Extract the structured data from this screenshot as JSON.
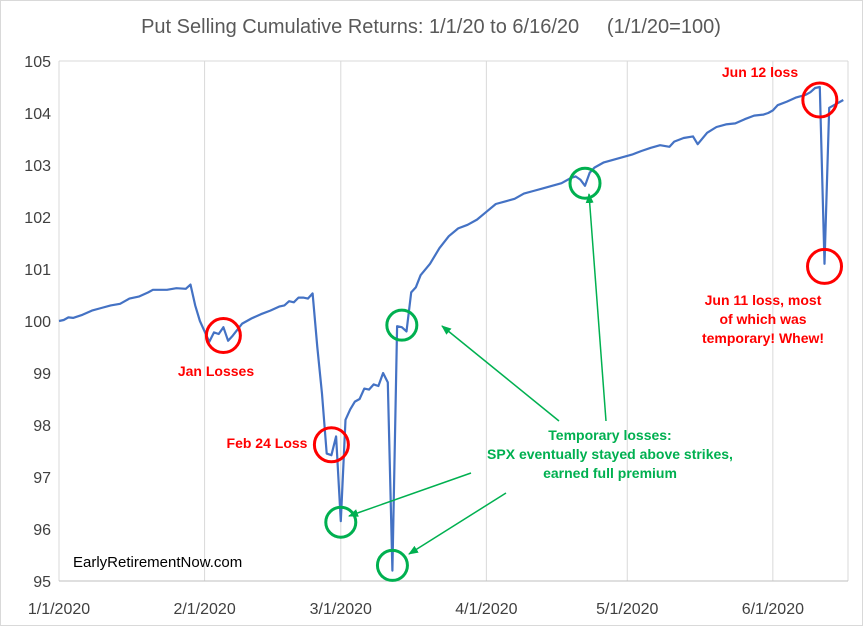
{
  "chart_data": {
    "type": "line",
    "title": "Put Selling Cumulative Returns: 1/1/20 to 6/16/20     (1/1/20=100)",
    "xlabel": "",
    "ylabel": "",
    "xlim": [
      "2020-01-01",
      "2020-06-17"
    ],
    "ylim": [
      95,
      105
    ],
    "y_ticks": [
      95,
      96,
      97,
      98,
      99,
      100,
      101,
      102,
      103,
      104,
      105
    ],
    "x_ticks": [
      {
        "date": "2020-01-01",
        "label": "1/1/2020"
      },
      {
        "date": "2020-02-01",
        "label": "2/1/2020"
      },
      {
        "date": "2020-03-01",
        "label": "3/1/2020"
      },
      {
        "date": "2020-04-01",
        "label": "4/1/2020"
      },
      {
        "date": "2020-05-01",
        "label": "5/1/2020"
      },
      {
        "date": "2020-06-01",
        "label": "6/1/2020"
      }
    ],
    "grid": "vertical gridlines and horizontal line at y=105",
    "line_color": "#4472c4",
    "series": [
      {
        "values": [
          [
            "2020-01-01",
            100.0
          ],
          [
            "2020-01-02",
            100.02
          ],
          [
            "2020-01-03",
            100.07
          ],
          [
            "2020-01-04",
            100.06
          ],
          [
            "2020-01-06",
            100.12
          ],
          [
            "2020-01-08",
            100.2
          ],
          [
            "2020-01-10",
            100.25
          ],
          [
            "2020-01-12",
            100.3
          ],
          [
            "2020-01-14",
            100.33
          ],
          [
            "2020-01-16",
            100.43
          ],
          [
            "2020-01-18",
            100.47
          ],
          [
            "2020-01-20",
            100.55
          ],
          [
            "2020-01-21",
            100.6
          ],
          [
            "2020-01-24",
            100.6
          ],
          [
            "2020-01-26",
            100.63
          ],
          [
            "2020-01-28",
            100.62
          ],
          [
            "2020-01-29",
            100.7
          ],
          [
            "2020-01-30",
            100.3
          ],
          [
            "2020-01-31",
            100.0
          ],
          [
            "2020-02-02",
            99.6
          ],
          [
            "2020-02-03",
            99.78
          ],
          [
            "2020-02-04",
            99.75
          ],
          [
            "2020-02-05",
            99.88
          ],
          [
            "2020-02-06",
            99.62
          ],
          [
            "2020-02-07",
            99.72
          ],
          [
            "2020-02-09",
            99.95
          ],
          [
            "2020-02-11",
            100.05
          ],
          [
            "2020-02-13",
            100.13
          ],
          [
            "2020-02-15",
            100.2
          ],
          [
            "2020-02-17",
            100.28
          ],
          [
            "2020-02-18",
            100.3
          ],
          [
            "2020-02-19",
            100.38
          ],
          [
            "2020-02-20",
            100.36
          ],
          [
            "2020-02-21",
            100.45
          ],
          [
            "2020-02-22",
            100.45
          ],
          [
            "2020-02-23",
            100.43
          ],
          [
            "2020-02-24",
            100.53
          ],
          [
            "2020-02-25",
            99.5
          ],
          [
            "2020-02-26",
            98.6
          ],
          [
            "2020-02-27",
            97.45
          ],
          [
            "2020-02-28",
            97.42
          ],
          [
            "2020-02-29",
            97.78
          ],
          [
            "2020-03-01",
            96.15
          ],
          [
            "2020-03-02",
            98.1
          ],
          [
            "2020-03-03",
            98.3
          ],
          [
            "2020-03-04",
            98.45
          ],
          [
            "2020-03-05",
            98.5
          ],
          [
            "2020-03-06",
            98.7
          ],
          [
            "2020-03-07",
            98.68
          ],
          [
            "2020-03-08",
            98.78
          ],
          [
            "2020-03-09",
            98.75
          ],
          [
            "2020-03-10",
            99.0
          ],
          [
            "2020-03-11",
            98.82
          ],
          [
            "2020-03-12",
            95.2
          ],
          [
            "2020-03-13",
            99.9
          ],
          [
            "2020-03-14",
            99.88
          ],
          [
            "2020-03-15",
            99.8
          ],
          [
            "2020-03-16",
            100.55
          ],
          [
            "2020-03-17",
            100.65
          ],
          [
            "2020-03-18",
            100.88
          ],
          [
            "2020-03-20",
            101.1
          ],
          [
            "2020-03-22",
            101.4
          ],
          [
            "2020-03-24",
            101.63
          ],
          [
            "2020-03-26",
            101.78
          ],
          [
            "2020-03-28",
            101.85
          ],
          [
            "2020-03-30",
            101.95
          ],
          [
            "2020-04-01",
            102.1
          ],
          [
            "2020-04-03",
            102.25
          ],
          [
            "2020-04-05",
            102.3
          ],
          [
            "2020-04-07",
            102.35
          ],
          [
            "2020-04-09",
            102.45
          ],
          [
            "2020-04-11",
            102.5
          ],
          [
            "2020-04-13",
            102.55
          ],
          [
            "2020-04-15",
            102.6
          ],
          [
            "2020-04-17",
            102.65
          ],
          [
            "2020-04-19",
            102.75
          ],
          [
            "2020-04-20",
            102.78
          ],
          [
            "2020-04-21",
            102.72
          ],
          [
            "2020-04-22",
            102.6
          ],
          [
            "2020-04-23",
            102.85
          ],
          [
            "2020-04-24",
            102.95
          ],
          [
            "2020-04-26",
            103.05
          ],
          [
            "2020-04-28",
            103.1
          ],
          [
            "2020-04-30",
            103.15
          ],
          [
            "2020-05-02",
            103.2
          ],
          [
            "2020-05-04",
            103.27
          ],
          [
            "2020-05-06",
            103.33
          ],
          [
            "2020-05-08",
            103.38
          ],
          [
            "2020-05-10",
            103.35
          ],
          [
            "2020-05-11",
            103.45
          ],
          [
            "2020-05-13",
            103.52
          ],
          [
            "2020-05-15",
            103.55
          ],
          [
            "2020-05-16",
            103.4
          ],
          [
            "2020-05-18",
            103.62
          ],
          [
            "2020-05-20",
            103.73
          ],
          [
            "2020-05-22",
            103.78
          ],
          [
            "2020-05-24",
            103.8
          ],
          [
            "2020-05-26",
            103.88
          ],
          [
            "2020-05-28",
            103.95
          ],
          [
            "2020-05-30",
            103.97
          ],
          [
            "2020-05-31",
            104.0
          ],
          [
            "2020-06-01",
            104.05
          ],
          [
            "2020-06-02",
            104.15
          ],
          [
            "2020-06-04",
            104.22
          ],
          [
            "2020-06-06",
            104.3
          ],
          [
            "2020-06-08",
            104.35
          ],
          [
            "2020-06-09",
            104.4
          ],
          [
            "2020-06-10",
            104.48
          ],
          [
            "2020-06-11",
            104.5
          ],
          [
            "2020-06-12",
            101.1
          ],
          [
            "2020-06-13",
            104.1
          ],
          [
            "2020-06-15",
            104.2
          ],
          [
            "2020-06-16",
            104.25
          ]
        ]
      }
    ],
    "annotations": {
      "red": [
        {
          "id": "jun12",
          "lines": [
            "Jun 12 loss"
          ]
        },
        {
          "id": "jun11",
          "lines": [
            "Jun 11 loss, most",
            "of which was",
            "temporary! Whew!"
          ]
        },
        {
          "id": "jan",
          "lines": [
            "Jan Losses"
          ]
        },
        {
          "id": "feb24",
          "lines": [
            "Feb 24 Loss"
          ]
        }
      ],
      "green": {
        "lines": [
          "Temporary losses:",
          "SPX eventually stayed above strikes,",
          "earned full premium"
        ]
      }
    },
    "circles": {
      "red": [
        {
          "name": "jan-losses",
          "date": "2020-02-05",
          "value": 99.72
        },
        {
          "name": "feb24-loss",
          "date": "2020-02-28",
          "value": 97.62
        },
        {
          "name": "jun12-loss",
          "date": "2020-06-11",
          "value": 104.25
        },
        {
          "name": "jun11-loss",
          "date": "2020-06-12",
          "value": 101.05
        }
      ],
      "green": [
        {
          "name": "mar1-temp",
          "date": "2020-03-01",
          "value": 96.13
        },
        {
          "name": "mar12-temp",
          "date": "2020-03-12",
          "value": 95.3
        },
        {
          "name": "mar14-temp",
          "date": "2020-03-14",
          "value": 99.92
        },
        {
          "name": "apr22-temp",
          "date": "2020-04-22",
          "value": 102.65
        }
      ]
    },
    "credit": "EarlyRetirementNow.com"
  }
}
